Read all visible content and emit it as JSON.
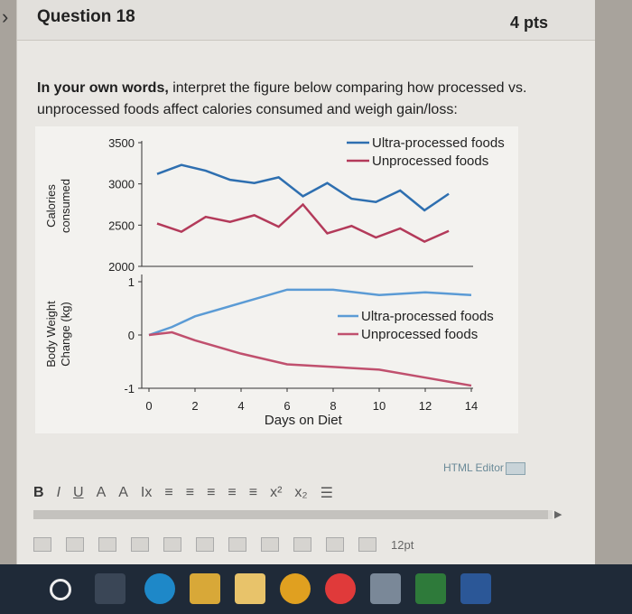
{
  "question": {
    "title": "Question 18",
    "points": "4 pts",
    "prompt_bold": "In your own words,",
    "prompt_rest": " interpret the figure below comparing how processed vs. unprocessed foods affect calories consumed and weigh gain/loss:"
  },
  "chart_data": [
    {
      "type": "line",
      "ylabel": "Calories consumed",
      "ylim": [
        2000,
        3500
      ],
      "yticks": [
        "3500",
        "3000",
        "2500",
        "2000"
      ],
      "x": [
        1,
        2,
        3,
        4,
        5,
        6,
        7,
        8,
        9,
        10,
        11,
        12,
        13,
        14
      ],
      "series": [
        {
          "name": "Ultra-processed foods",
          "color": "#2e6fb0",
          "values": [
            3120,
            3230,
            3160,
            3050,
            3010,
            3080,
            2850,
            3010,
            2820,
            2780,
            2920,
            2680,
            2880,
            null
          ]
        },
        {
          "name": "Unprocessed foods",
          "color": "#b33a5a",
          "values": [
            2520,
            2420,
            2600,
            2540,
            2620,
            2480,
            2750,
            2400,
            2490,
            2350,
            2460,
            2300,
            2430,
            null
          ]
        }
      ],
      "legend": "top-right"
    },
    {
      "type": "line",
      "ylabel": "Body Weight Change (kg)",
      "xlabel": "Days on Diet",
      "ylim": [
        -1,
        1
      ],
      "yticks": [
        "1",
        "0",
        "-1"
      ],
      "xticks": [
        "0",
        "2",
        "4",
        "6",
        "8",
        "10",
        "12",
        "14"
      ],
      "series": [
        {
          "name": "Ultra-processed foods",
          "color": "#5b9bd5",
          "x": [
            0,
            1,
            2,
            4,
            6,
            8,
            10,
            12,
            14
          ],
          "values": [
            0,
            0.15,
            0.35,
            0.6,
            0.85,
            0.85,
            0.75,
            0.8,
            0.75
          ]
        },
        {
          "name": "Unprocessed foods",
          "color": "#c0506e",
          "x": [
            0,
            1,
            2,
            4,
            6,
            8,
            10,
            12,
            14
          ],
          "values": [
            0,
            0.05,
            -0.1,
            -0.35,
            -0.55,
            -0.6,
            -0.65,
            -0.8,
            -0.95
          ]
        }
      ],
      "legend": "center-right"
    }
  ],
  "editor": {
    "label": "HTML Editor",
    "font_size": "12pt",
    "toolbar": [
      "B",
      "I",
      "U",
      "A",
      "A",
      "Ix",
      "≡",
      "≡",
      "≡",
      "≡",
      "≡",
      "x²",
      "x₂",
      "☰"
    ]
  }
}
